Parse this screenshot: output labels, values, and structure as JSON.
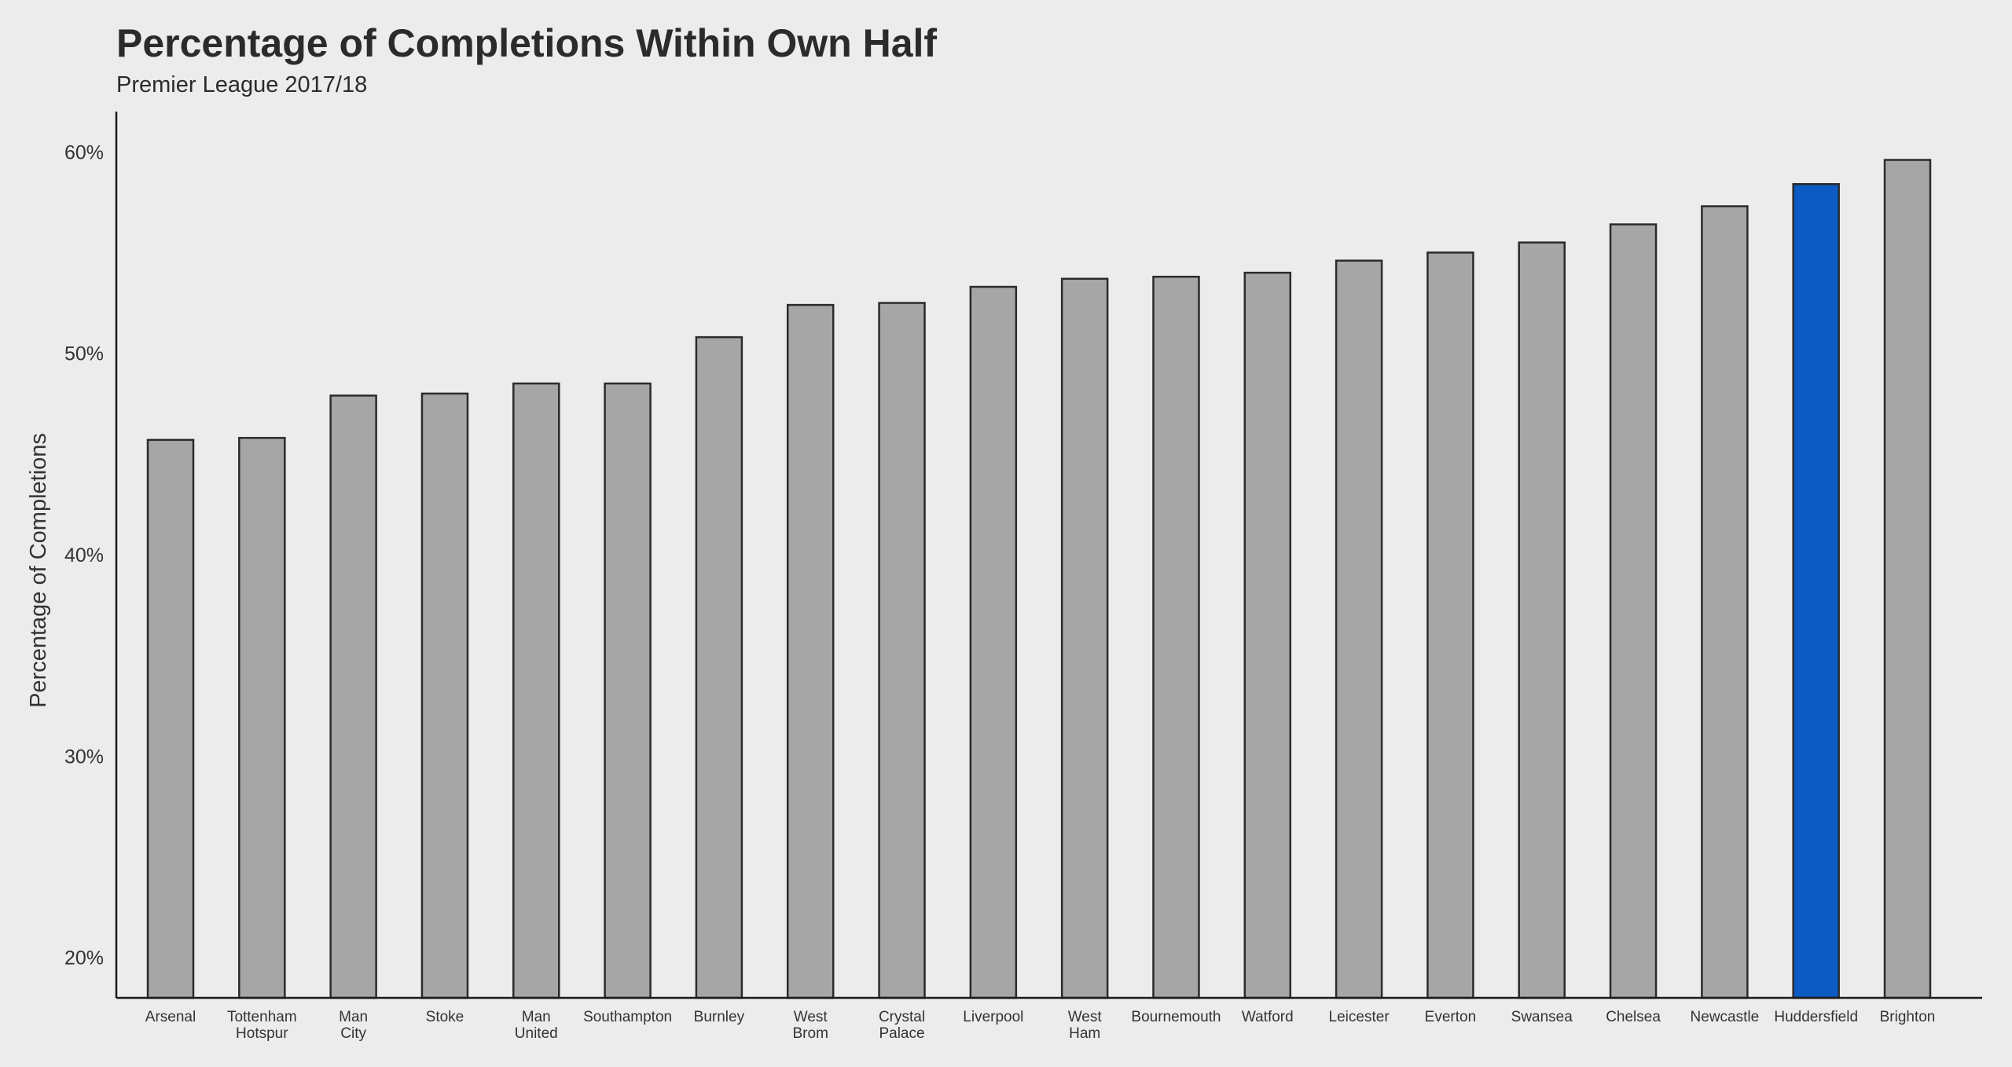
{
  "chart_data": {
    "type": "bar",
    "title": "Percentage of Completions Within Own Half",
    "subtitle": "Premier League 2017/18",
    "xlabel": "",
    "ylabel": "Percentage of Completions",
    "ylim": [
      18,
      62
    ],
    "yticks": [
      20,
      30,
      40,
      50,
      60
    ],
    "ytick_labels": [
      "20%",
      "30%",
      "40%",
      "50%",
      "60%"
    ],
    "grid": false,
    "categories": [
      [
        "Arsenal"
      ],
      [
        "Tottenham",
        "Hotspur"
      ],
      [
        "Man",
        "City"
      ],
      [
        "Stoke"
      ],
      [
        "Man",
        "United"
      ],
      [
        "Southampton"
      ],
      [
        "Burnley"
      ],
      [
        "West",
        "Brom"
      ],
      [
        "Crystal",
        "Palace"
      ],
      [
        "Liverpool"
      ],
      [
        "West",
        "Ham"
      ],
      [
        "Bournemouth"
      ],
      [
        "Watford"
      ],
      [
        "Leicester"
      ],
      [
        "Everton"
      ],
      [
        "Swansea"
      ],
      [
        "Chelsea"
      ],
      [
        "Newcastle"
      ],
      [
        "Huddersfield"
      ],
      [
        "Brighton"
      ]
    ],
    "values": [
      45.7,
      45.8,
      47.9,
      48.0,
      48.5,
      48.5,
      50.8,
      52.4,
      52.5,
      53.3,
      53.7,
      53.8,
      54.0,
      54.6,
      55.0,
      55.5,
      56.4,
      57.3,
      58.4,
      59.6
    ],
    "highlight_index": 18,
    "colors": {
      "bar": "#a6a6a6",
      "highlight": "#0b5bc2",
      "outline": "#2b2b2b",
      "background": "#ececec"
    }
  }
}
